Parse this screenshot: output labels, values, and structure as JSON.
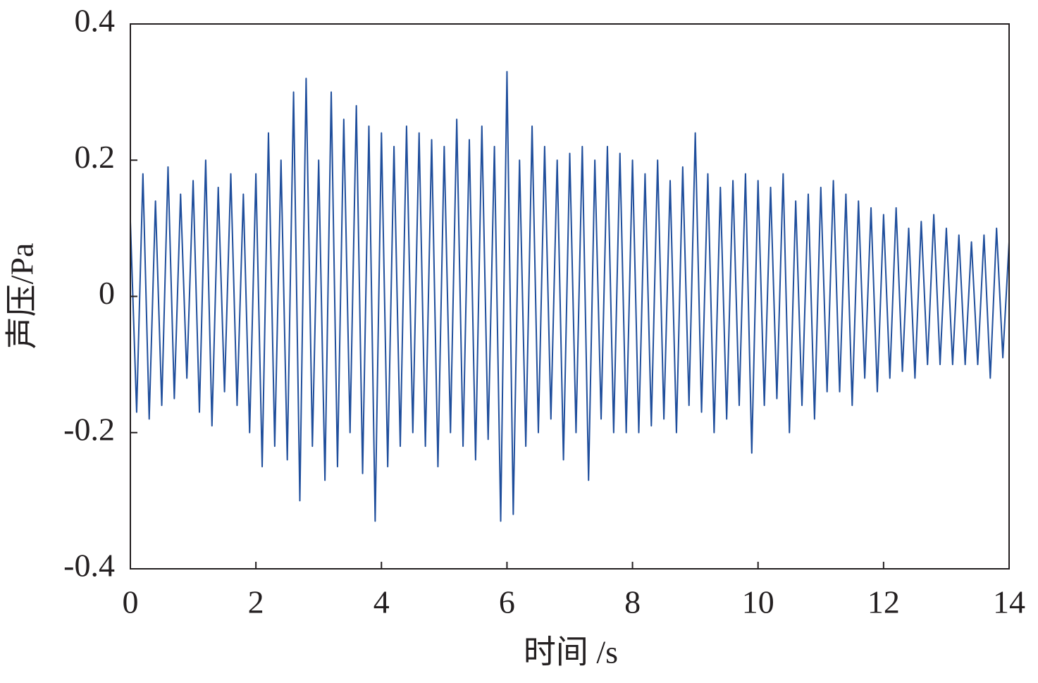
{
  "chart_data": {
    "type": "line",
    "x_label": "时间 /s",
    "y_label": "声压/Pa",
    "xlim": [
      0,
      14
    ],
    "xticks": [
      0,
      2,
      4,
      6,
      8,
      10,
      12,
      14
    ],
    "ylim": [
      -0.4,
      0.4
    ],
    "yticks": [
      0.4,
      0.2,
      0,
      -0.2,
      -0.4
    ],
    "x": [
      0,
      0.1,
      0.2,
      0.3,
      0.4,
      0.5,
      0.6,
      0.7,
      0.8,
      0.9,
      1,
      1.1,
      1.2,
      1.3,
      1.4,
      1.5,
      1.6,
      1.7,
      1.8,
      1.9,
      2,
      2.1,
      2.2,
      2.3,
      2.4,
      2.5,
      2.6,
      2.7,
      2.8,
      2.9,
      3,
      3.1,
      3.2,
      3.3,
      3.4,
      3.5,
      3.6,
      3.7,
      3.8,
      3.9,
      4,
      4.1,
      4.2,
      4.3,
      4.4,
      4.5,
      4.6,
      4.7,
      4.8,
      4.9,
      5,
      5.1,
      5.2,
      5.3,
      5.4,
      5.5,
      5.6,
      5.7,
      5.8,
      5.9,
      6,
      6.1,
      6.2,
      6.3,
      6.4,
      6.5,
      6.6,
      6.7,
      6.8,
      6.9,
      7,
      7.1,
      7.2,
      7.3,
      7.4,
      7.5,
      7.6,
      7.7,
      7.8,
      7.9,
      8,
      8.1,
      8.2,
      8.3,
      8.4,
      8.5,
      8.6,
      8.7,
      8.8,
      8.9,
      9,
      9.1,
      9.2,
      9.3,
      9.4,
      9.5,
      9.6,
      9.7,
      9.8,
      9.9,
      10,
      10.1,
      10.2,
      10.3,
      10.4,
      10.5,
      10.6,
      10.7,
      10.8,
      10.9,
      11,
      11.1,
      11.2,
      11.3,
      11.4,
      11.5,
      11.6,
      11.7,
      11.8,
      11.9,
      12,
      12.1,
      12.2,
      12.3,
      12.4,
      12.5,
      12.6,
      12.7,
      12.8,
      12.9,
      13,
      13.1,
      13.2,
      13.3,
      13.4,
      13.5,
      13.6,
      13.7,
      13.8,
      13.9,
      14
    ],
    "series": [
      {
        "color": "#1f4e9c",
        "values": [
          0.11,
          -0.17,
          0.18,
          -0.18,
          0.14,
          -0.16,
          0.19,
          -0.15,
          0.15,
          -0.12,
          0.17,
          -0.17,
          0.2,
          -0.19,
          0.16,
          -0.14,
          0.18,
          -0.16,
          0.15,
          -0.2,
          0.18,
          -0.25,
          0.24,
          -0.22,
          0.2,
          -0.24,
          0.3,
          -0.3,
          0.32,
          -0.22,
          0.2,
          -0.27,
          0.3,
          -0.25,
          0.26,
          -0.2,
          0.28,
          -0.26,
          0.25,
          -0.33,
          0.24,
          -0.25,
          0.22,
          -0.22,
          0.25,
          -0.2,
          0.24,
          -0.22,
          0.23,
          -0.25,
          0.22,
          -0.2,
          0.26,
          -0.22,
          0.23,
          -0.24,
          0.25,
          -0.21,
          0.22,
          -0.33,
          0.33,
          -0.32,
          0.2,
          -0.22,
          0.25,
          -0.2,
          0.22,
          -0.18,
          0.2,
          -0.24,
          0.21,
          -0.2,
          0.22,
          -0.27,
          0.2,
          -0.18,
          0.22,
          -0.2,
          0.21,
          -0.2,
          0.2,
          -0.2,
          0.18,
          -0.19,
          0.2,
          -0.18,
          0.17,
          -0.2,
          0.19,
          -0.16,
          0.24,
          -0.17,
          0.18,
          -0.2,
          0.16,
          -0.18,
          0.17,
          -0.16,
          0.18,
          -0.23,
          0.17,
          -0.16,
          0.16,
          -0.15,
          0.18,
          -0.2,
          0.14,
          -0.16,
          0.15,
          -0.18,
          0.16,
          -0.14,
          0.17,
          -0.14,
          0.15,
          -0.16,
          0.14,
          -0.12,
          0.13,
          -0.14,
          0.12,
          -0.12,
          0.13,
          -0.11,
          0.1,
          -0.12,
          0.11,
          -0.1,
          0.12,
          -0.1,
          0.1,
          -0.1,
          0.09,
          -0.1,
          0.08,
          -0.1,
          0.09,
          -0.12,
          0.1,
          -0.09,
          0.08
        ]
      }
    ]
  }
}
